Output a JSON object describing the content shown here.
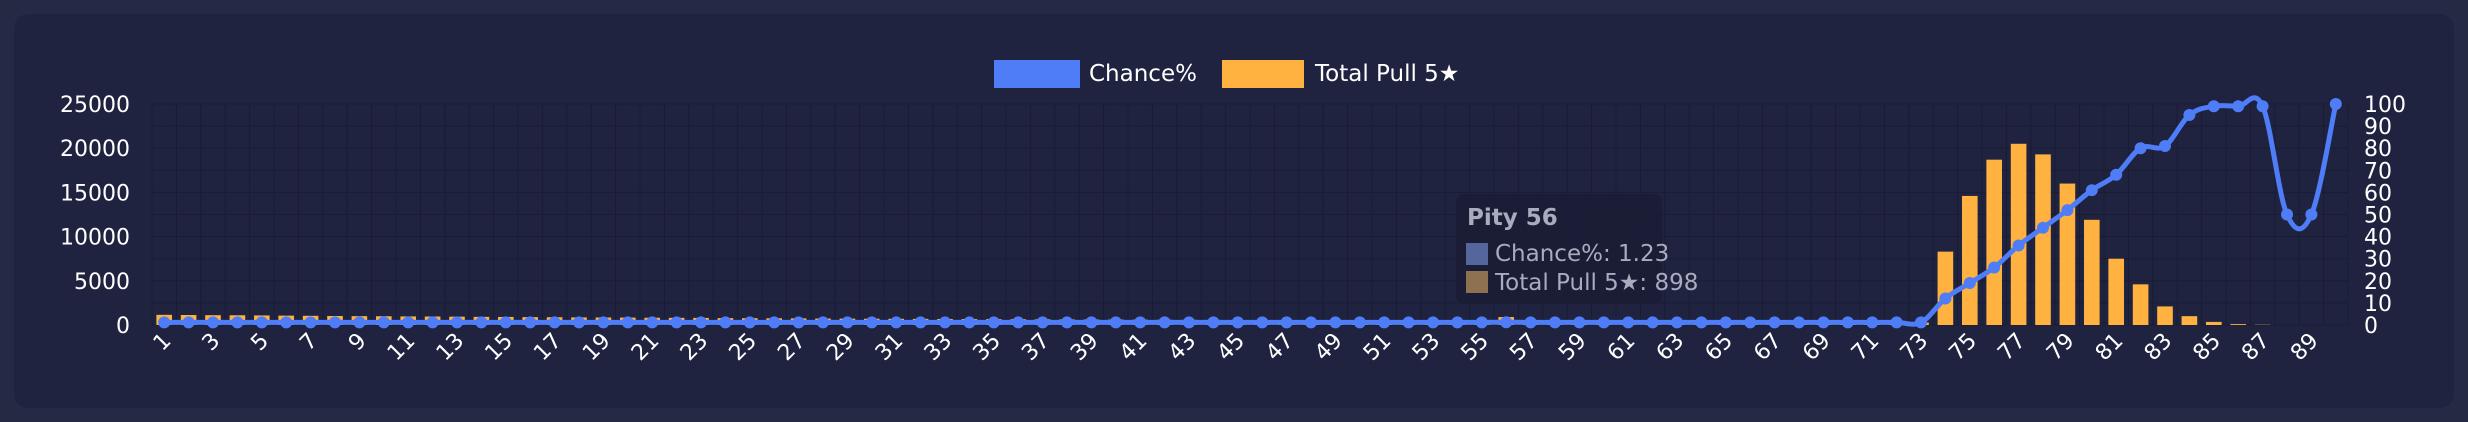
{
  "chart_data": {
    "type": "bar",
    "x": [
      1,
      2,
      3,
      4,
      5,
      6,
      7,
      8,
      9,
      10,
      11,
      12,
      13,
      14,
      15,
      16,
      17,
      18,
      19,
      20,
      21,
      22,
      23,
      24,
      25,
      26,
      27,
      28,
      29,
      30,
      31,
      32,
      33,
      34,
      35,
      36,
      37,
      38,
      39,
      40,
      41,
      42,
      43,
      44,
      45,
      46,
      47,
      48,
      49,
      50,
      51,
      52,
      53,
      54,
      55,
      56,
      57,
      58,
      59,
      60,
      61,
      62,
      63,
      64,
      65,
      66,
      67,
      68,
      69,
      70,
      71,
      72,
      73,
      74,
      75,
      76,
      77,
      78,
      79,
      80,
      81,
      82,
      83,
      84,
      85,
      86,
      87,
      88,
      89,
      90
    ],
    "x_tick_labels": [
      "1",
      "3",
      "5",
      "7",
      "9",
      "11",
      "13",
      "15",
      "17",
      "19",
      "21",
      "23",
      "25",
      "27",
      "29",
      "31",
      "33",
      "35",
      "37",
      "39",
      "41",
      "43",
      "45",
      "47",
      "49",
      "51",
      "53",
      "55",
      "57",
      "59",
      "61",
      "63",
      "65",
      "67",
      "69",
      "71",
      "73",
      "75",
      "77",
      "79",
      "81",
      "83",
      "85",
      "87",
      "89"
    ],
    "series": [
      {
        "name": "Chance%",
        "type": "line",
        "axis": "right",
        "color": "#4f7df8",
        "values": [
          1.2,
          1.2,
          1.2,
          1.2,
          1.2,
          1.2,
          1.2,
          1.2,
          1.2,
          1.2,
          1.2,
          1.2,
          1.2,
          1.2,
          1.2,
          1.2,
          1.2,
          1.2,
          1.2,
          1.2,
          1.2,
          1.2,
          1.2,
          1.2,
          1.2,
          1.2,
          1.2,
          1.2,
          1.2,
          1.2,
          1.2,
          1.2,
          1.2,
          1.2,
          1.2,
          1.2,
          1.2,
          1.2,
          1.2,
          1.2,
          1.2,
          1.2,
          1.2,
          1.2,
          1.2,
          1.2,
          1.2,
          1.2,
          1.2,
          1.2,
          1.2,
          1.2,
          1.2,
          1.2,
          1.2,
          1.23,
          1.2,
          1.2,
          1.2,
          1.2,
          1.2,
          1.2,
          1.2,
          1.2,
          1.2,
          1.2,
          1.2,
          1.2,
          1.2,
          1.2,
          1.2,
          1.2,
          1.2,
          12,
          19,
          26,
          36,
          44,
          52,
          61,
          68,
          80,
          81,
          95,
          99,
          99,
          99,
          50,
          50,
          100
        ]
      },
      {
        "name": "Total Pull 5★",
        "type": "bar",
        "axis": "left",
        "color": "#ffb23f",
        "values": [
          1150,
          1130,
          1110,
          1100,
          1080,
          1060,
          1040,
          1020,
          1000,
          990,
          970,
          960,
          940,
          920,
          910,
          890,
          880,
          860,
          850,
          840,
          820,
          810,
          800,
          780,
          770,
          760,
          750,
          730,
          720,
          710,
          700,
          690,
          680,
          670,
          660,
          650,
          640,
          630,
          620,
          610,
          600,
          590,
          580,
          575,
          565,
          555,
          545,
          535,
          525,
          515,
          505,
          495,
          485,
          475,
          465,
          898,
          440,
          430,
          420,
          410,
          400,
          390,
          380,
          370,
          360,
          350,
          340,
          330,
          320,
          310,
          300,
          290,
          280,
          8300,
          14600,
          18700,
          20500,
          19300,
          16000,
          11900,
          7500,
          4600,
          2100,
          1000,
          350,
          100,
          30,
          0,
          0,
          0
        ]
      }
    ],
    "y_left_ticks": [
      "25000",
      "20000",
      "15000",
      "10000",
      "5000",
      "0"
    ],
    "y_right_ticks": [
      "100",
      "90",
      "80",
      "70",
      "60",
      "50",
      "40",
      "30",
      "20",
      "10",
      "0"
    ],
    "ylim_left": [
      0,
      25000
    ],
    "ylim_right": [
      0,
      100
    ],
    "legend_position": "top-center",
    "grid": true,
    "tooltip": {
      "title": "Pity 56",
      "lines": [
        "Chance%: 1.23",
        "Total Pull 5★: 898"
      ]
    }
  }
}
